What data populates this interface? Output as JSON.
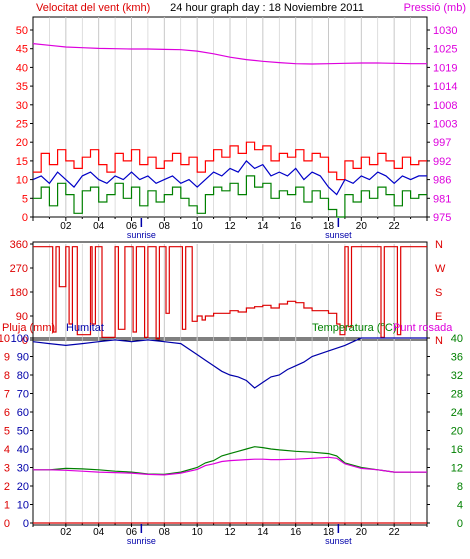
{
  "colors": {
    "bg": "#ffffff",
    "frame": "#000000",
    "grid": "#c8c8c8",
    "wind": "#ff0000",
    "gust": "#ff0000",
    "wind_avg": "#0000c8",
    "wind_low": "#008000",
    "pressure": "#dd00dd",
    "direction": "#dd0000",
    "rain": "#dd0000",
    "humidity": "#0000aa",
    "temperature": "#008000",
    "dewpoint": "#dd00dd",
    "daylight_marker": "#0000aa"
  },
  "top_panel": {
    "title": "24 hour graph day : 18 Noviembre 2011",
    "left_label": "Velocitat del vent (kmh)",
    "right_label": "Pressió (mb)"
  },
  "middle_panel": {
    "compass_labels": [
      "N",
      "W",
      "S",
      "E",
      "N"
    ]
  },
  "bottom_panel": {
    "rain_label": "Pluja (mm)",
    "humidity_label": "Humitat",
    "temperature_label": "Temperatura (°C)",
    "dewpoint_label": "Punt rosada"
  },
  "chart_data": [
    {
      "type": "line",
      "panel": "wind_pressure",
      "title": "24 hour graph day : 18 Noviembre 2011",
      "xlabel": "",
      "x_ticks": [
        "02",
        "04",
        "06",
        "08",
        "10",
        "12",
        "14",
        "16",
        "18",
        "20",
        "22",
        ""
      ],
      "x_range": [
        0,
        24
      ],
      "annotations": [
        {
          "text": "sunrise",
          "x": 6.6
        },
        {
          "text": "sunset",
          "x": 18.6
        }
      ],
      "y_left": {
        "label": "Velocitat del vent (kmh)",
        "ticks": [
          "0",
          "5",
          "10",
          "15",
          "20",
          "25",
          "30",
          "35",
          "40",
          "45",
          "50"
        ],
        "range": [
          0,
          50
        ]
      },
      "y_right": {
        "label": "Pressió (mb)",
        "ticks": [
          "975",
          "981",
          "986",
          "992",
          "997",
          "1003",
          "1008",
          "1014",
          "1019",
          "1025",
          "1030"
        ],
        "range": [
          975,
          1030
        ]
      },
      "grid": "vertical",
      "series": [
        {
          "role": "gust",
          "axis": "left",
          "style": "step",
          "x": [
            0,
            0.5,
            1,
            1.5,
            2,
            2.5,
            3,
            3.5,
            4,
            4.5,
            5,
            5.5,
            6,
            6.5,
            7,
            7.5,
            8,
            8.5,
            9,
            9.5,
            10,
            10.5,
            11,
            11.5,
            12,
            12.5,
            13,
            13.5,
            14,
            14.5,
            15,
            15.5,
            16,
            16.5,
            17,
            17.5,
            18,
            18.5,
            19,
            19.5,
            20,
            20.5,
            21,
            21.5,
            22,
            22.5,
            23,
            23.5,
            24
          ],
          "y": [
            12,
            17,
            14,
            18,
            15,
            13,
            16,
            18,
            14,
            12,
            17,
            15,
            18,
            14,
            16,
            13,
            15,
            17,
            14,
            16,
            12,
            15,
            18,
            16,
            19,
            17,
            20,
            18,
            19,
            15,
            17,
            16,
            18,
            15,
            17,
            16,
            12,
            10,
            15,
            13,
            16,
            14,
            17,
            15,
            13,
            16,
            14,
            15,
            15
          ]
        },
        {
          "role": "average",
          "axis": "left",
          "style": "line",
          "x": [
            0,
            0.5,
            1,
            1.5,
            2,
            2.5,
            3,
            3.5,
            4,
            4.5,
            5,
            5.5,
            6,
            6.5,
            7,
            7.5,
            8,
            8.5,
            9,
            9.5,
            10,
            10.5,
            11,
            11.5,
            12,
            12.5,
            13,
            13.5,
            14,
            14.5,
            15,
            15.5,
            16,
            16.5,
            17,
            17.5,
            18,
            18.5,
            19,
            19.5,
            20,
            20.5,
            21,
            21.5,
            22,
            22.5,
            23,
            23.5,
            24
          ],
          "y": [
            10,
            11,
            9,
            12,
            10,
            8,
            11,
            12,
            10,
            9,
            11,
            10,
            12,
            10,
            11,
            9,
            10,
            11,
            9,
            10,
            8,
            10,
            12,
            11,
            13,
            12,
            15,
            13,
            14,
            11,
            12,
            11,
            13,
            10,
            12,
            11,
            8,
            6,
            10,
            9,
            11,
            10,
            12,
            11,
            9,
            11,
            10,
            11,
            11
          ]
        },
        {
          "role": "lull",
          "axis": "left",
          "style": "step",
          "x": [
            0,
            0.5,
            1,
            1.5,
            2,
            2.5,
            3,
            3.5,
            4,
            4.5,
            5,
            5.5,
            6,
            6.5,
            7,
            7.5,
            8,
            8.5,
            9,
            9.5,
            10,
            10.5,
            11,
            11.5,
            12,
            12.5,
            13,
            13.5,
            14,
            14.5,
            15,
            15.5,
            16,
            16.5,
            17,
            17.5,
            18,
            18.5,
            19,
            19.5,
            20,
            20.5,
            21,
            21.5,
            22,
            22.5,
            23,
            23.5,
            24
          ],
          "y": [
            5,
            8,
            3,
            9,
            6,
            1,
            7,
            8,
            4,
            6,
            9,
            5,
            8,
            3,
            7,
            4,
            6,
            8,
            5,
            3,
            1,
            6,
            8,
            7,
            9,
            6,
            11,
            8,
            9,
            5,
            7,
            6,
            8,
            4,
            7,
            5,
            2,
            0,
            6,
            4,
            7,
            5,
            8,
            6,
            3,
            7,
            5,
            6,
            6
          ]
        },
        {
          "role": "pressure",
          "axis": "right",
          "style": "line",
          "x": [
            0,
            1,
            2,
            3,
            4,
            5,
            6,
            7,
            8,
            9,
            10,
            11,
            12,
            13,
            14,
            15,
            16,
            17,
            18,
            19,
            20,
            21,
            22,
            23,
            24
          ],
          "y": [
            1026,
            1025.5,
            1025,
            1024.8,
            1024.6,
            1024.5,
            1024.4,
            1024.4,
            1024.3,
            1024.2,
            1023.8,
            1023,
            1022,
            1021.3,
            1020.8,
            1020.4,
            1020.1,
            1020,
            1020.1,
            1020.2,
            1020.3,
            1020.3,
            1020.2,
            1020.1,
            1020.1
          ]
        }
      ]
    },
    {
      "type": "line",
      "panel": "wind_direction",
      "x_range": [
        0,
        24
      ],
      "y_left": {
        "ticks": [
          "0",
          "90",
          "180",
          "270",
          "360"
        ],
        "range": [
          0,
          360
        ]
      },
      "y_right": {
        "ticks": [
          "N",
          "W",
          "S",
          "E",
          "N"
        ]
      },
      "grid": "vertical",
      "series": [
        {
          "role": "direction",
          "style": "step",
          "x": [
            0,
            1,
            1.2,
            1.4,
            1.6,
            2,
            2.2,
            2.4,
            2.5,
            2.7,
            3.5,
            3.6,
            3.8,
            4,
            4.2,
            5,
            5.2,
            5.6,
            5.8,
            6,
            6.1,
            6.3,
            6.5,
            6.7,
            6.8,
            7,
            7.4,
            7.5,
            7.7,
            8,
            8.1,
            8.3,
            9,
            9.1,
            9.3,
            9.6,
            9.7,
            10,
            10.3,
            10.5,
            11,
            12,
            12.5,
            13,
            13.5,
            14,
            14.5,
            15,
            15.5,
            16,
            16.5,
            17,
            17.5,
            18,
            18.5,
            18.7,
            19,
            19.2,
            19.4,
            19.6,
            20,
            21,
            21.2,
            21.4,
            22,
            22.2,
            22.4,
            23,
            24
          ],
          "y": [
            350,
            350,
            30,
            350,
            200,
            350,
            60,
            350,
            350,
            20,
            350,
            60,
            350,
            350,
            10,
            350,
            40,
            350,
            350,
            350,
            30,
            350,
            350,
            350,
            10,
            350,
            350,
            5,
            350,
            350,
            100,
            350,
            350,
            40,
            350,
            350,
            70,
            90,
            75,
            90,
            100,
            110,
            105,
            120,
            125,
            130,
            120,
            135,
            145,
            140,
            120,
            110,
            110,
            100,
            60,
            20,
            350,
            50,
            350,
            350,
            350,
            350,
            10,
            350,
            350,
            20,
            350,
            350,
            350
          ]
        }
      ]
    },
    {
      "type": "line",
      "panel": "rain_humidity_temperature",
      "x_ticks": [
        "02",
        "04",
        "06",
        "08",
        "10",
        "12",
        "14",
        "16",
        "18",
        "20",
        "22",
        ""
      ],
      "x_range": [
        0,
        24
      ],
      "annotations": [
        {
          "text": "sunrise",
          "x": 6.6
        },
        {
          "text": "sunset",
          "x": 18.6
        }
      ],
      "y_rain": {
        "label": "Pluja (mm)",
        "ticks": [
          "0",
          "1",
          "2",
          "3",
          "4",
          "5",
          "6",
          "7",
          "8",
          "9",
          "10"
        ],
        "range": [
          0,
          10
        ]
      },
      "y_humidity": {
        "label": "Humitat",
        "ticks": [
          "0",
          "10",
          "20",
          "30",
          "40",
          "50",
          "60",
          "70",
          "80",
          "90",
          "100"
        ],
        "range": [
          0,
          100
        ]
      },
      "y_right": {
        "label": "Temperatura (°C)",
        "ticks": [
          "0",
          "4",
          "8",
          "12",
          "16",
          "20",
          "24",
          "28",
          "32",
          "36",
          "40"
        ],
        "range": [
          0,
          40
        ]
      },
      "grid": "vertical",
      "series": [
        {
          "role": "rain",
          "axis": "rain",
          "style": "line",
          "x": [
            0,
            24
          ],
          "y": [
            0,
            0
          ]
        },
        {
          "role": "humidity",
          "axis": "humidity",
          "style": "line",
          "x": [
            0,
            1,
            2,
            3,
            4,
            5,
            6,
            7,
            8,
            9,
            10,
            10.5,
            11,
            11.5,
            12,
            12.5,
            13,
            13.5,
            14,
            14.5,
            15,
            15.5,
            16,
            16.5,
            17,
            18,
            19,
            19.5,
            20,
            21,
            22,
            23,
            24
          ],
          "y": [
            98,
            97,
            96,
            97,
            98,
            99,
            98,
            99,
            98,
            97,
            91,
            88,
            85,
            82,
            80,
            79,
            77,
            73,
            76,
            79,
            80,
            83,
            85,
            87,
            90,
            93,
            96,
            98,
            100,
            100,
            100,
            100,
            100
          ]
        },
        {
          "role": "temperature",
          "axis": "right",
          "style": "line",
          "x": [
            0,
            1,
            2,
            3,
            4,
            5,
            6,
            7,
            8,
            9,
            10,
            10.5,
            11,
            11.5,
            12,
            12.5,
            13,
            13.5,
            14,
            14.5,
            15,
            16,
            17,
            18,
            18.5,
            19,
            20,
            21,
            22,
            23,
            24
          ],
          "y": [
            11.5,
            11.5,
            11.8,
            11.7,
            11.5,
            11.2,
            11,
            10.6,
            10.5,
            11,
            12,
            13,
            13.5,
            14.5,
            15,
            15.5,
            16,
            16.5,
            16.3,
            16,
            15.8,
            15.5,
            15.3,
            15,
            14.5,
            13,
            12,
            11.5,
            11,
            11,
            11
          ]
        },
        {
          "role": "dewpoint",
          "axis": "right",
          "style": "line",
          "x": [
            0,
            1,
            2,
            3,
            4,
            5,
            6,
            7,
            8,
            9,
            10,
            10.5,
            11,
            11.5,
            12,
            12.5,
            13,
            13.5,
            14,
            14.5,
            15,
            16,
            17,
            18,
            18.5,
            19,
            20,
            21,
            22,
            23,
            24
          ],
          "y": [
            11.5,
            11.5,
            11.4,
            11.2,
            11,
            10.9,
            10.8,
            10.5,
            10.4,
            10.8,
            11.6,
            12.4,
            12.8,
            13.3,
            13.5,
            13.6,
            13.7,
            13.8,
            13.8,
            13.7,
            13.7,
            13.8,
            14,
            14.2,
            14,
            12.8,
            11.8,
            11.5,
            11,
            11,
            11
          ]
        }
      ]
    }
  ]
}
